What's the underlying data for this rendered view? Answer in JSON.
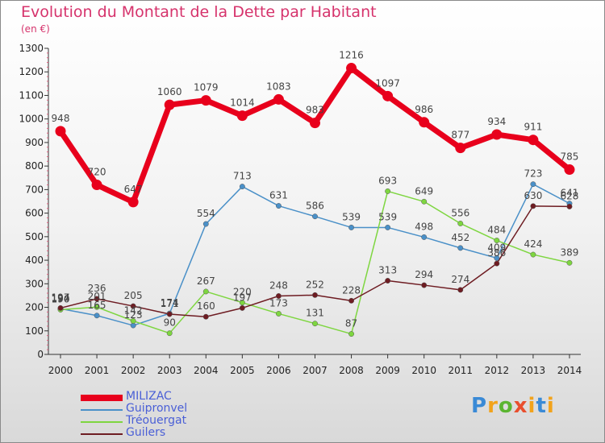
{
  "title": "Evolution du Montant de la Dette par Habitant",
  "subtitle": "(en €)",
  "logo_text": "Proxiti",
  "chart_data": {
    "type": "line",
    "title": "Evolution du Montant de la Dette par Habitant",
    "subtitle": "(en €)",
    "x": [
      "2000",
      "2001",
      "2002",
      "2003",
      "2004",
      "2005",
      "2006",
      "2007",
      "2008",
      "2009",
      "2010",
      "2011",
      "2012",
      "2013",
      "2014"
    ],
    "ylim": [
      0,
      1300
    ],
    "yticks": [
      0,
      100,
      200,
      300,
      400,
      500,
      600,
      700,
      800,
      900,
      1000,
      1100,
      1200,
      1300
    ],
    "grid": false,
    "legend_position": "bottom-left",
    "series": [
      {
        "name": "MILIZAC",
        "color": "#e8001c",
        "values": [
          948,
          720,
          647,
          1060,
          1079,
          1014,
          1083,
          983,
          1216,
          1097,
          986,
          877,
          934,
          911,
          785
        ]
      },
      {
        "name": "Guipronvel",
        "color": "#4a90c8",
        "values": [
          194,
          165,
          123,
          174,
          554,
          713,
          631,
          586,
          539,
          539,
          498,
          452,
          409,
          723,
          641
        ]
      },
      {
        "name": "Tréouergat",
        "color": "#7ed640",
        "values": [
          190,
          201,
          142,
          90,
          267,
          220,
          173,
          131,
          87,
          693,
          649,
          556,
          484,
          424,
          389
        ]
      },
      {
        "name": "Guilers",
        "color": "#6e1c22",
        "values": [
          197,
          236,
          205,
          171,
          160,
          197,
          248,
          252,
          228,
          313,
          294,
          274,
          386,
          630,
          628
        ]
      }
    ]
  }
}
